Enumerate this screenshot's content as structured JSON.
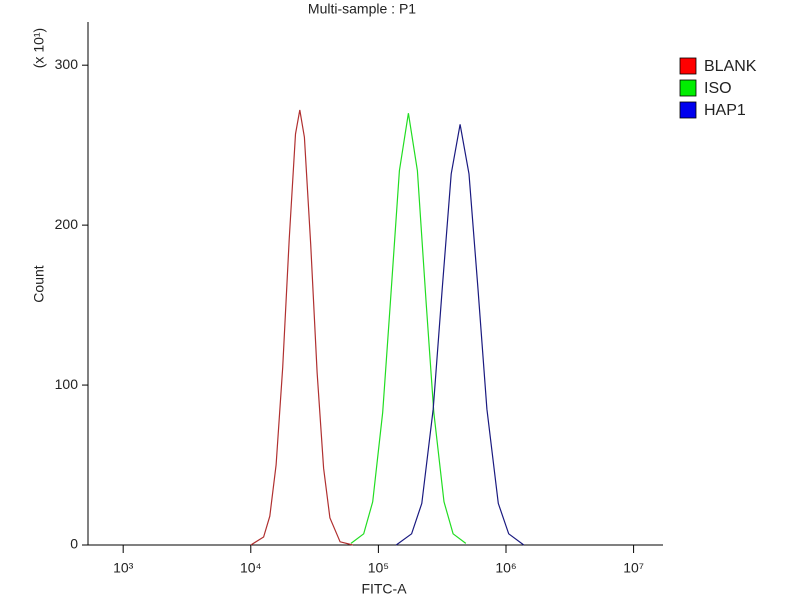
{
  "chart_data": {
    "type": "line",
    "title": "Multi-sample : P1",
    "x_label": "FITC-A",
    "y_label": "Count",
    "y_multiplier": "(x 10¹)",
    "xscale": "log",
    "xlim": [
      530,
      17000000
    ],
    "ylim": [
      0,
      327
    ],
    "xticks": [
      {
        "value": 1000,
        "label": "10³"
      },
      {
        "value": 10000,
        "label": "10⁴"
      },
      {
        "value": 100000,
        "label": "10⁵"
      },
      {
        "value": 1000000,
        "label": "10⁶"
      },
      {
        "value": 10000000,
        "label": "10⁷"
      }
    ],
    "yticks": [
      0,
      100,
      200,
      300
    ],
    "legend": "right",
    "series": [
      {
        "name": "BLANK",
        "color": "#ff0000",
        "line_color": "#b03030",
        "x": [
          10000,
          12600,
          14100,
          15800,
          17800,
          20000,
          22400,
          24200,
          26300,
          29500,
          33100,
          37200,
          41700,
          50100,
          63100
        ],
        "values": [
          0,
          5,
          18,
          50,
          111,
          191,
          257,
          272,
          255,
          188,
          108,
          48,
          17,
          2,
          0
        ]
      },
      {
        "name": "ISO",
        "color": "#00ee00",
        "line_color": "#22dd22",
        "x": [
          61000,
          76700,
          90200,
          108000,
          124000,
          146000,
          172000,
          202000,
          237000,
          272000,
          327000,
          385000,
          484000
        ],
        "values": [
          1,
          7,
          27,
          83,
          151,
          234,
          270,
          234,
          151,
          83,
          27,
          7,
          1
        ]
      },
      {
        "name": "HAP1",
        "color": "#0000ee",
        "line_color": "#1a1a80",
        "x": [
          138000,
          182000,
          219000,
          269000,
          316000,
          372000,
          437000,
          513000,
          603000,
          708000,
          871000,
          1050000,
          1380000
        ],
        "values": [
          0,
          7,
          26,
          85,
          160,
          232,
          263,
          232,
          160,
          85,
          26,
          7,
          0
        ]
      }
    ]
  }
}
